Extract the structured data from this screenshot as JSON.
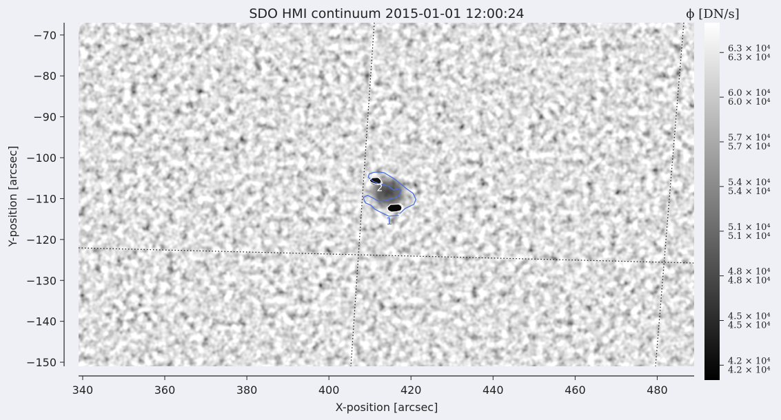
{
  "chart_data": {
    "type": "heatmap",
    "title": "SDO HMI continuum 2015-01-01 12:00:24",
    "xlabel": "X-position [arcsec]",
    "ylabel": "Y-position [arcsec]",
    "colorbar_label": "ϕ [DN/s]",
    "xlim": [
      339,
      489
    ],
    "ylim": [
      -151,
      -67
    ],
    "x_ticks": [
      340,
      360,
      380,
      400,
      420,
      440,
      460,
      480
    ],
    "y_ticks": [
      -70,
      -80,
      -90,
      -100,
      -110,
      -120,
      -130,
      -140,
      -150
    ],
    "x_tick_labels": [
      "340",
      "360",
      "380",
      "400",
      "420",
      "440",
      "460",
      "480"
    ],
    "y_tick_labels": [
      "−70",
      "−80",
      "−90",
      "−100",
      "−110",
      "−120",
      "−130",
      "−140",
      "−150"
    ],
    "colormap": "gray",
    "colorbar_range": [
      41000,
      65000
    ],
    "colorbar_ticks": [
      {
        "value": 42000,
        "label": "4.2 × 10⁴",
        "label2": "4.2 × 10⁴"
      },
      {
        "value": 45000,
        "label": "4.5 × 10⁴",
        "label2": "4.5 × 10⁴"
      },
      {
        "value": 48000,
        "label": "4.8 × 10⁴",
        "label2": "4.8 × 10⁴"
      },
      {
        "value": 51000,
        "label": "5.1 × 10⁴",
        "label2": "5.1 × 10⁴"
      },
      {
        "value": 54000,
        "label": "5.4 × 10⁴",
        "label2": "5.4 × 10⁴"
      },
      {
        "value": 57000,
        "label": "5.7 × 10⁴",
        "label2": "5.7 × 10⁴"
      },
      {
        "value": 60000,
        "label": "6.0 × 10⁴",
        "label2": "6.0 × 10⁴"
      },
      {
        "value": 63000,
        "label": "6.3 × 10⁴",
        "label2": "6.3 × 10⁴"
      }
    ],
    "grid": "dotted heliographic grid lines",
    "contours": [
      {
        "label": "1",
        "color": "#4a6fe0",
        "x": [
          413.5,
          416.0,
          418.8,
          420.5,
          421.2,
          420.7,
          418.6,
          416.8,
          414.6,
          412.7,
          411.2,
          410.2,
          409.0,
          408.6,
          408.4,
          409.4,
          410.8,
          411.8,
          412.8,
          413.5,
          414.2,
          415.0,
          416.2,
          417.0,
          417.6,
          417.0,
          415.8,
          414.4,
          412.7,
          410.8,
          409.6,
          409.8,
          410.9,
          412.3,
          413.5
        ],
        "y": [
          -103.7,
          -105.2,
          -107.5,
          -108.7,
          -110.2,
          -111.4,
          -112.4,
          -114.1,
          -114.3,
          -113.4,
          -112.6,
          -111.6,
          -111.1,
          -110.5,
          -109.7,
          -109.2,
          -109.9,
          -110.5,
          -110.6,
          -110.5,
          -110.4,
          -110.0,
          -109.8,
          -109.3,
          -108.0,
          -107.5,
          -107.9,
          -106.9,
          -106.6,
          -105.8,
          -104.8,
          -104.0,
          -103.6,
          -103.5,
          -103.7
        ]
      },
      {
        "label": "2",
        "color": "#ffffff",
        "x": [
          410.6,
          412.0,
          412.6,
          413.0,
          412.4,
          411.3,
          410.3,
          409.8,
          410.6
        ],
        "y": [
          -104.9,
          -104.8,
          -105.4,
          -106.2,
          -106.5,
          -106.4,
          -106.1,
          -105.5,
          -104.9
        ]
      },
      {
        "label": "1",
        "color": "#ffffff",
        "x": [
          415.0,
          417.4,
          418.0,
          417.6,
          416.5,
          415.2,
          414.4,
          414.2,
          415.0
        ],
        "y": [
          -111.4,
          -111.3,
          -111.8,
          -112.9,
          -113.2,
          -113.3,
          -112.9,
          -112.2,
          -111.4
        ]
      }
    ],
    "contour_labels": [
      {
        "text": "1",
        "x": 414.7,
        "y": -116.3,
        "color": "#4a6fe0"
      },
      {
        "text": "2",
        "x": 412.4,
        "y": -108.2,
        "color": "#ffffff"
      },
      {
        "text": "1",
        "x": 417.3,
        "y": -115.5,
        "color": "#ffffff"
      }
    ]
  }
}
